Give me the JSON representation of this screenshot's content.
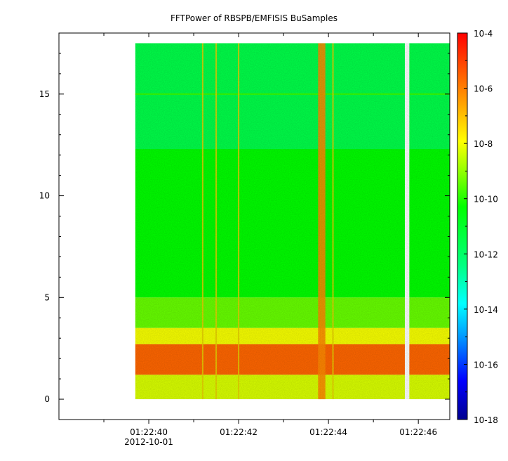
{
  "chart_data": {
    "type": "heatmap",
    "title": "FFTPower of RBSPB/EMFISIS  BuSamples",
    "xlabel": "",
    "ylabel": "",
    "x_range": [
      "01:22:38.0",
      "01:22:46.7"
    ],
    "data_x_range": [
      "01:22:39.7",
      "01:22:46.7"
    ],
    "data_gap": [
      "01:22:45.7",
      "01:22:45.8"
    ],
    "ylim": [
      -1,
      18
    ],
    "data_ylim": [
      0,
      17.5
    ],
    "x_ticks": [
      {
        "label": "01:22:40",
        "seconds": 40,
        "sublabel": "2012-10-01"
      },
      {
        "label": "01:22:42",
        "seconds": 42,
        "sublabel": ""
      },
      {
        "label": "01:22:44",
        "seconds": 44,
        "sublabel": ""
      },
      {
        "label": "01:22:46",
        "seconds": 46,
        "sublabel": ""
      }
    ],
    "x_minor_ticks_seconds": [
      39,
      41,
      43,
      45
    ],
    "y_ticks": [
      0,
      5,
      10,
      15
    ],
    "colorbar": {
      "scale": "log",
      "range": [
        -18,
        -4
      ],
      "ticks": [
        -4,
        -6,
        -8,
        -10,
        -12,
        -14,
        -16,
        -18
      ],
      "tick_labels": [
        "10-4",
        "10-6",
        "10-8",
        "10-10",
        "10-12",
        "10-14",
        "10-16",
        "10-18"
      ],
      "colormap": [
        "#00008f",
        "#0000ff",
        "#00a0ff",
        "#00ffff",
        "#00ff80",
        "#00ff00",
        "#80ff00",
        "#ffff00",
        "#ffa000",
        "#ff5000",
        "#ff0000"
      ]
    },
    "bands": [
      {
        "y_from": 12.3,
        "y_to": 17.5,
        "level": -11.5
      },
      {
        "y_from": 5.0,
        "y_to": 12.3,
        "level": -10.3
      },
      {
        "y_from": 3.5,
        "y_to": 5.0,
        "level": -9.4
      },
      {
        "y_from": 2.7,
        "y_to": 3.5,
        "level": -8.0
      },
      {
        "y_from": 1.2,
        "y_to": 2.7,
        "level": -5.6
      },
      {
        "y_from": 0.0,
        "y_to": 1.2,
        "level": -8.3
      }
    ],
    "line_features": [
      {
        "y": 15.0,
        "level": -9.8,
        "note": "horizontal line"
      }
    ],
    "vertical_events_seconds": [
      41.2,
      41.5,
      42.0,
      43.8,
      43.85,
      43.9,
      44.1
    ],
    "grid": false
  }
}
